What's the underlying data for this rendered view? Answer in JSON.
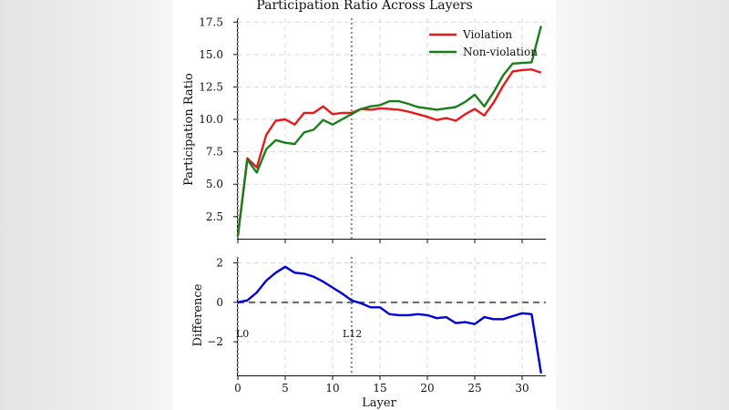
{
  "chart_data": [
    {
      "type": "line",
      "title": "Participation Ratio Across Layers",
      "xlabel": "",
      "ylabel": "Participation Ratio",
      "xlim": [
        0,
        32.5
      ],
      "ylim": [
        0.8,
        17.8
      ],
      "x_ticks": [
        0,
        5,
        10,
        15,
        20,
        25,
        30
      ],
      "y_ticks": [
        2.5,
        5.0,
        7.5,
        10.0,
        12.5,
        15.0,
        17.5
      ],
      "y_tick_labels": [
        "2.5",
        "5.0",
        "7.5",
        "10.0",
        "12.5",
        "15.0",
        "17.5"
      ],
      "legend_position": "top-right",
      "series": [
        {
          "name": "Violation",
          "color": "#e41a1c",
          "x": [
            0,
            1,
            2,
            3,
            4,
            5,
            6,
            7,
            8,
            9,
            10,
            11,
            12,
            13,
            14,
            15,
            16,
            17,
            18,
            19,
            20,
            21,
            22,
            23,
            24,
            25,
            26,
            27,
            28,
            29,
            30,
            31,
            32
          ],
          "values": [
            1.0,
            7.0,
            6.3,
            8.8,
            9.9,
            10.0,
            9.6,
            10.5,
            10.5,
            11.0,
            10.4,
            10.5,
            10.5,
            10.8,
            10.75,
            10.85,
            10.8,
            10.75,
            10.6,
            10.4,
            10.2,
            9.95,
            10.1,
            9.9,
            10.4,
            10.8,
            10.3,
            11.3,
            12.6,
            13.7,
            13.8,
            13.85,
            13.6
          ]
        },
        {
          "name": "Non-violation",
          "color": "#1a7f1a",
          "x": [
            0,
            1,
            2,
            3,
            4,
            5,
            6,
            7,
            8,
            9,
            10,
            11,
            12,
            13,
            14,
            15,
            16,
            17,
            18,
            19,
            20,
            21,
            22,
            23,
            24,
            25,
            26,
            27,
            28,
            29,
            30,
            31,
            32
          ],
          "values": [
            1.0,
            6.9,
            5.9,
            7.7,
            8.4,
            8.2,
            8.1,
            9.0,
            9.2,
            9.95,
            9.6,
            10.0,
            10.4,
            10.8,
            11.0,
            11.1,
            11.4,
            11.4,
            11.2,
            10.95,
            10.85,
            10.75,
            10.85,
            10.95,
            11.35,
            11.9,
            11.0,
            12.1,
            13.4,
            14.3,
            14.35,
            14.4,
            17.2
          ]
        }
      ],
      "vlines": [
        {
          "x": 0,
          "style": "dotted"
        },
        {
          "x": 12,
          "style": "dotted"
        }
      ]
    },
    {
      "type": "line",
      "title": "",
      "xlabel": "Layer",
      "ylabel": "Difference",
      "xlim": [
        0,
        32.5
      ],
      "ylim": [
        -3.7,
        2.3
      ],
      "x_ticks": [
        0,
        5,
        10,
        15,
        20,
        25,
        30
      ],
      "y_ticks": [
        -2,
        0,
        2
      ],
      "y_tick_labels": [
        "−2",
        "0",
        "2"
      ],
      "series": [
        {
          "name": "Difference",
          "color": "#0000dd",
          "x": [
            0,
            1,
            2,
            3,
            4,
            5,
            6,
            7,
            8,
            9,
            10,
            11,
            12,
            13,
            14,
            15,
            16,
            17,
            18,
            19,
            20,
            21,
            22,
            23,
            24,
            25,
            26,
            27,
            28,
            29,
            30,
            31,
            32
          ],
          "values": [
            0.0,
            0.1,
            0.5,
            1.1,
            1.5,
            1.8,
            1.5,
            1.45,
            1.3,
            1.05,
            0.75,
            0.45,
            0.1,
            -0.05,
            -0.25,
            -0.25,
            -0.6,
            -0.65,
            -0.65,
            -0.6,
            -0.65,
            -0.8,
            -0.75,
            -1.05,
            -1.0,
            -1.1,
            -0.75,
            -0.85,
            -0.85,
            -0.7,
            -0.55,
            -0.6,
            -3.6
          ]
        }
      ],
      "hline": {
        "y": 0,
        "style": "dashed",
        "color": "#666666"
      },
      "vlines": [
        {
          "x": 0,
          "style": "dotted",
          "label": "L0"
        },
        {
          "x": 12,
          "style": "dotted",
          "label": "L12"
        }
      ]
    }
  ]
}
